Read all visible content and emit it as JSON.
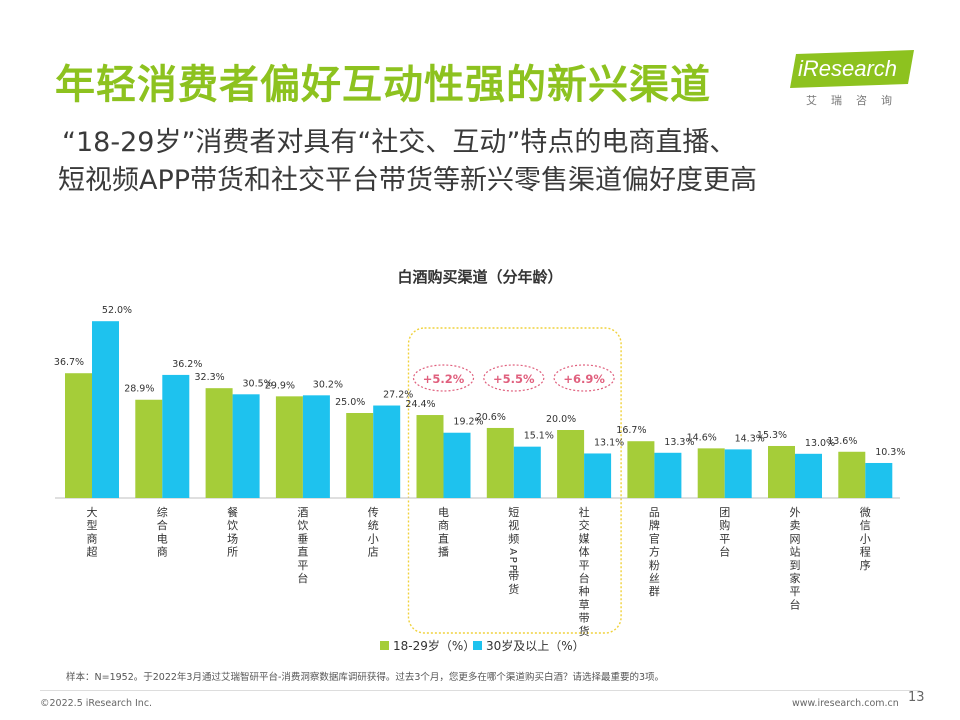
{
  "header": {
    "title": "年轻消费者偏好互动性强的新兴渠道",
    "subtitle_line1": "“18-29岁”消费者对具有“社交、互动”特点的电商直播、",
    "subtitle_line2": "短视频APP带货和社交平台带货等新兴零售渠道偏好度更高"
  },
  "logo": {
    "name": "iResearch",
    "sub": "艾瑞咨询"
  },
  "chart_data": {
    "type": "bar",
    "title": "白酒购买渠道（分年龄）",
    "categories": [
      "大型商超",
      "综合电商",
      "餐饮场所",
      "酒饮垂直平台",
      "传统小店",
      "电商直播",
      "短视频APP带货",
      "社交媒体平台种草带货",
      "品牌官方粉丝群",
      "团购平台",
      "外卖网站到家平台",
      "微信小程序"
    ],
    "series": [
      {
        "name": "18-29岁（%）",
        "color": "#a5cd39",
        "values": [
          36.7,
          28.9,
          32.3,
          29.9,
          25.0,
          24.4,
          20.6,
          20.0,
          16.7,
          14.6,
          15.3,
          13.6
        ]
      },
      {
        "name": "30岁及以上（%）",
        "color": "#1ec2ee",
        "values": [
          52.0,
          36.2,
          30.5,
          30.2,
          27.2,
          19.2,
          15.1,
          13.1,
          13.3,
          14.3,
          13.0,
          10.3
        ]
      }
    ],
    "data_labels": [
      [
        "36.7%",
        "28.9%",
        "32.3%",
        "29.9%",
        "25.0%",
        "24.4%",
        "20.6%",
        "20.0%",
        "16.7%",
        "14.6%",
        "15.3%",
        "13.6%"
      ],
      [
        "52.0%",
        "36.2%",
        "30.5%",
        "30.2%",
        "27.2%",
        "19.2%",
        "15.1%",
        "13.1%",
        "13.3%",
        "14.3%",
        "13.0%",
        "10.3%"
      ]
    ],
    "annotations": [
      {
        "category": "电商直播",
        "text": "+5.2%"
      },
      {
        "category": "短视频APP带货",
        "text": "+5.5%"
      },
      {
        "category": "社交媒体平台种草带货",
        "text": "+6.9%"
      }
    ],
    "highlight_range": [
      "电商直播",
      "社交媒体平台种草带货"
    ],
    "legend_position": "bottom-center",
    "annotation_color": "#e0607e",
    "highlight_color": "#f0d23c",
    "ylim": [
      0,
      60
    ],
    "grid": false
  },
  "footer": {
    "note": "样本：N=1952。于2022年3月通过艾瑞智研平台-消费洞察数据库调研获得。过去3个月，您更多在哪个渠道购买白酒？请选择最重要的3项。",
    "copyright": "©2022.5 iResearch Inc.",
    "website": "www.iresearch.com.cn",
    "page": "13"
  }
}
